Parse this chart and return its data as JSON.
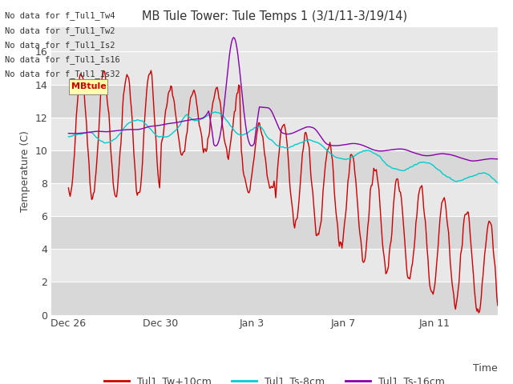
{
  "title": "MB Tule Tower: Tule Temps 1 (3/1/11-3/19/14)",
  "ylabel": "Temperature (C)",
  "xlabel": "Time",
  "legend_labels": [
    "Tul1_Tw+10cm",
    "Tul1_Ts-8cm",
    "Tul1_Ts-16cm"
  ],
  "legend_colors": [
    "#cc0000",
    "#00cccc",
    "#8800aa"
  ],
  "no_data_lines": [
    "No data for f_Tul1_Tw4",
    "No data for f_Tul1_Tw2",
    "No data for f_Tul1_Is2",
    "No data for f_Tul1_Is16",
    "No data for f_Tul1_Is32"
  ],
  "tooltip_text": "MBtule",
  "xticklabels": [
    "Dec 26",
    "Dec 30",
    "Jan 3",
    "Jan 7",
    "Jan 11"
  ],
  "yticks": [
    0,
    2,
    4,
    6,
    8,
    10,
    12,
    14,
    16
  ],
  "ylim": [
    0,
    17.5
  ],
  "line_width": 1.0,
  "band_colors": [
    "#d8d8d8",
    "#e8e8e8"
  ],
  "fig_width": 6.4,
  "fig_height": 4.8,
  "dpi": 100
}
